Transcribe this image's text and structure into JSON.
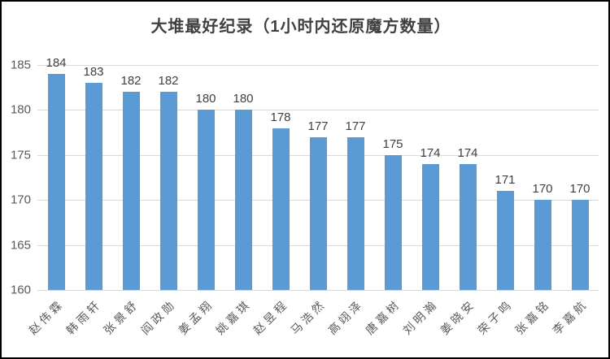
{
  "chart_data": {
    "type": "bar",
    "title": "大堆最好纪录（1小时内还原魔方数量）",
    "categories": [
      "赵伟霖",
      "韩雨轩",
      "张景舒",
      "阎政勋",
      "姜孟翔",
      "姚嘉琪",
      "赵昱程",
      "马浩然",
      "高翊泽",
      "唐嘉树",
      "刘明瀚",
      "姜晓安",
      "荣子鸣",
      "张嘉铭",
      "李嘉航"
    ],
    "values": [
      184,
      183,
      182,
      182,
      180,
      180,
      178,
      177,
      177,
      175,
      174,
      174,
      171,
      170,
      170
    ],
    "xlabel": "",
    "ylabel": "",
    "ylim": [
      160,
      185
    ],
    "yticks": [
      185,
      180,
      175,
      170,
      165,
      160
    ],
    "grid": true,
    "legend_position": "none",
    "bar_color": "#5B9BD5",
    "colors": {
      "gridline": "#D9D9D9",
      "title": "#404040",
      "axis_labels": "#595959",
      "value_labels": "#404040",
      "frame_border": "#000000",
      "background": "#FFFFFF"
    }
  }
}
